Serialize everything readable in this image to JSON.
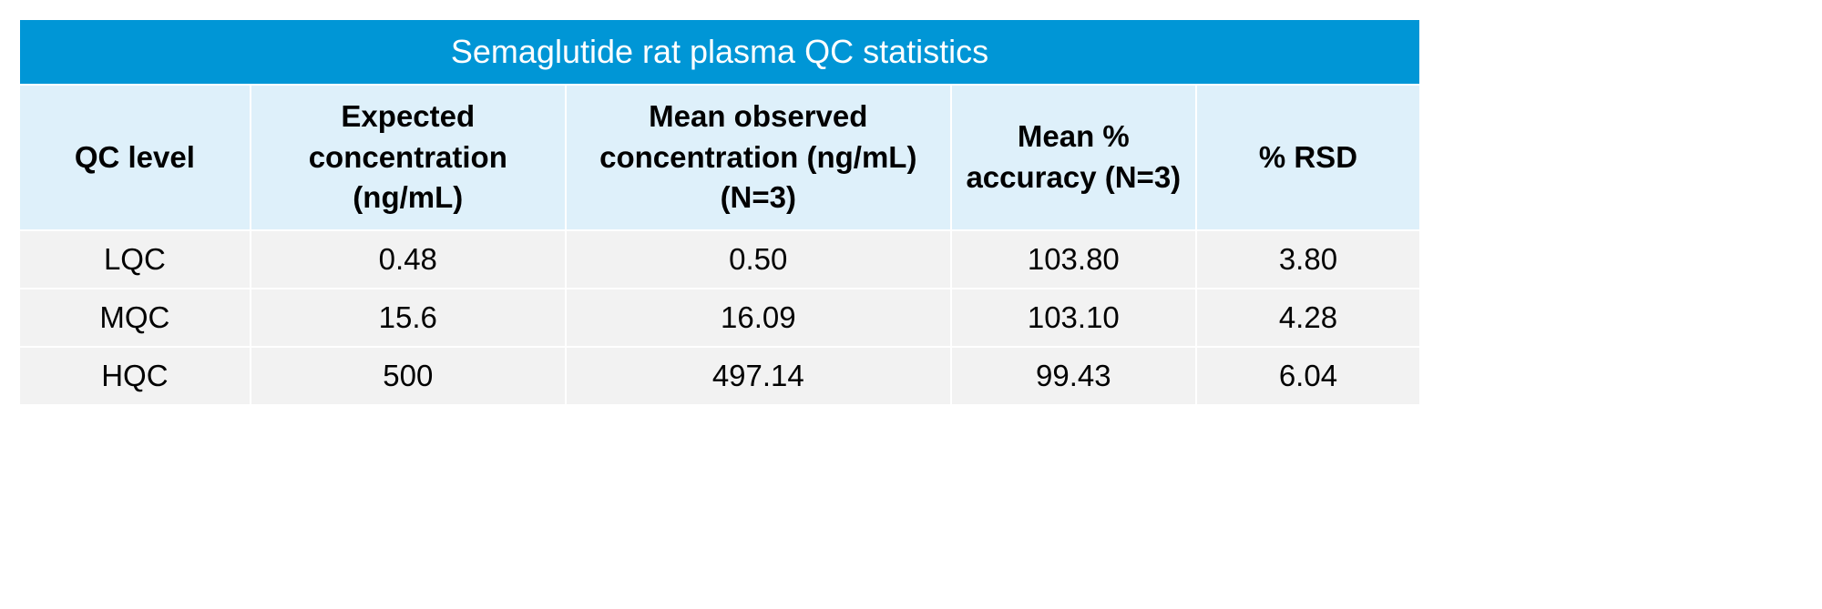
{
  "table": {
    "title": "Semaglutide rat plasma QC statistics",
    "title_bg": "#0096d6",
    "title_color": "#ffffff",
    "title_fontsize": 36,
    "title_fontweight": 400,
    "header_bg": "#def0fa",
    "header_color": "#000000",
    "header_fontsize": 33,
    "header_fontweight": 700,
    "data_bg": "#f2f2f2",
    "data_color": "#000000",
    "data_fontsize": 33,
    "border_color": "#ffffff",
    "border_width": 2,
    "column_widths_pct": [
      16.5,
      22.5,
      27.5,
      17.5,
      16
    ],
    "columns": [
      "QC level",
      "Expected concentration (ng/mL)",
      "Mean observed concentration (ng/mL) (N=3)",
      "Mean % accuracy (N=3)",
      "% RSD"
    ],
    "rows": [
      [
        "LQC",
        "0.48",
        "0.50",
        "103.80",
        "3.80"
      ],
      [
        "MQC",
        "15.6",
        "16.09",
        "103.10",
        "4.28"
      ],
      [
        "HQC",
        "500",
        "497.14",
        "99.43",
        "6.04"
      ]
    ]
  }
}
